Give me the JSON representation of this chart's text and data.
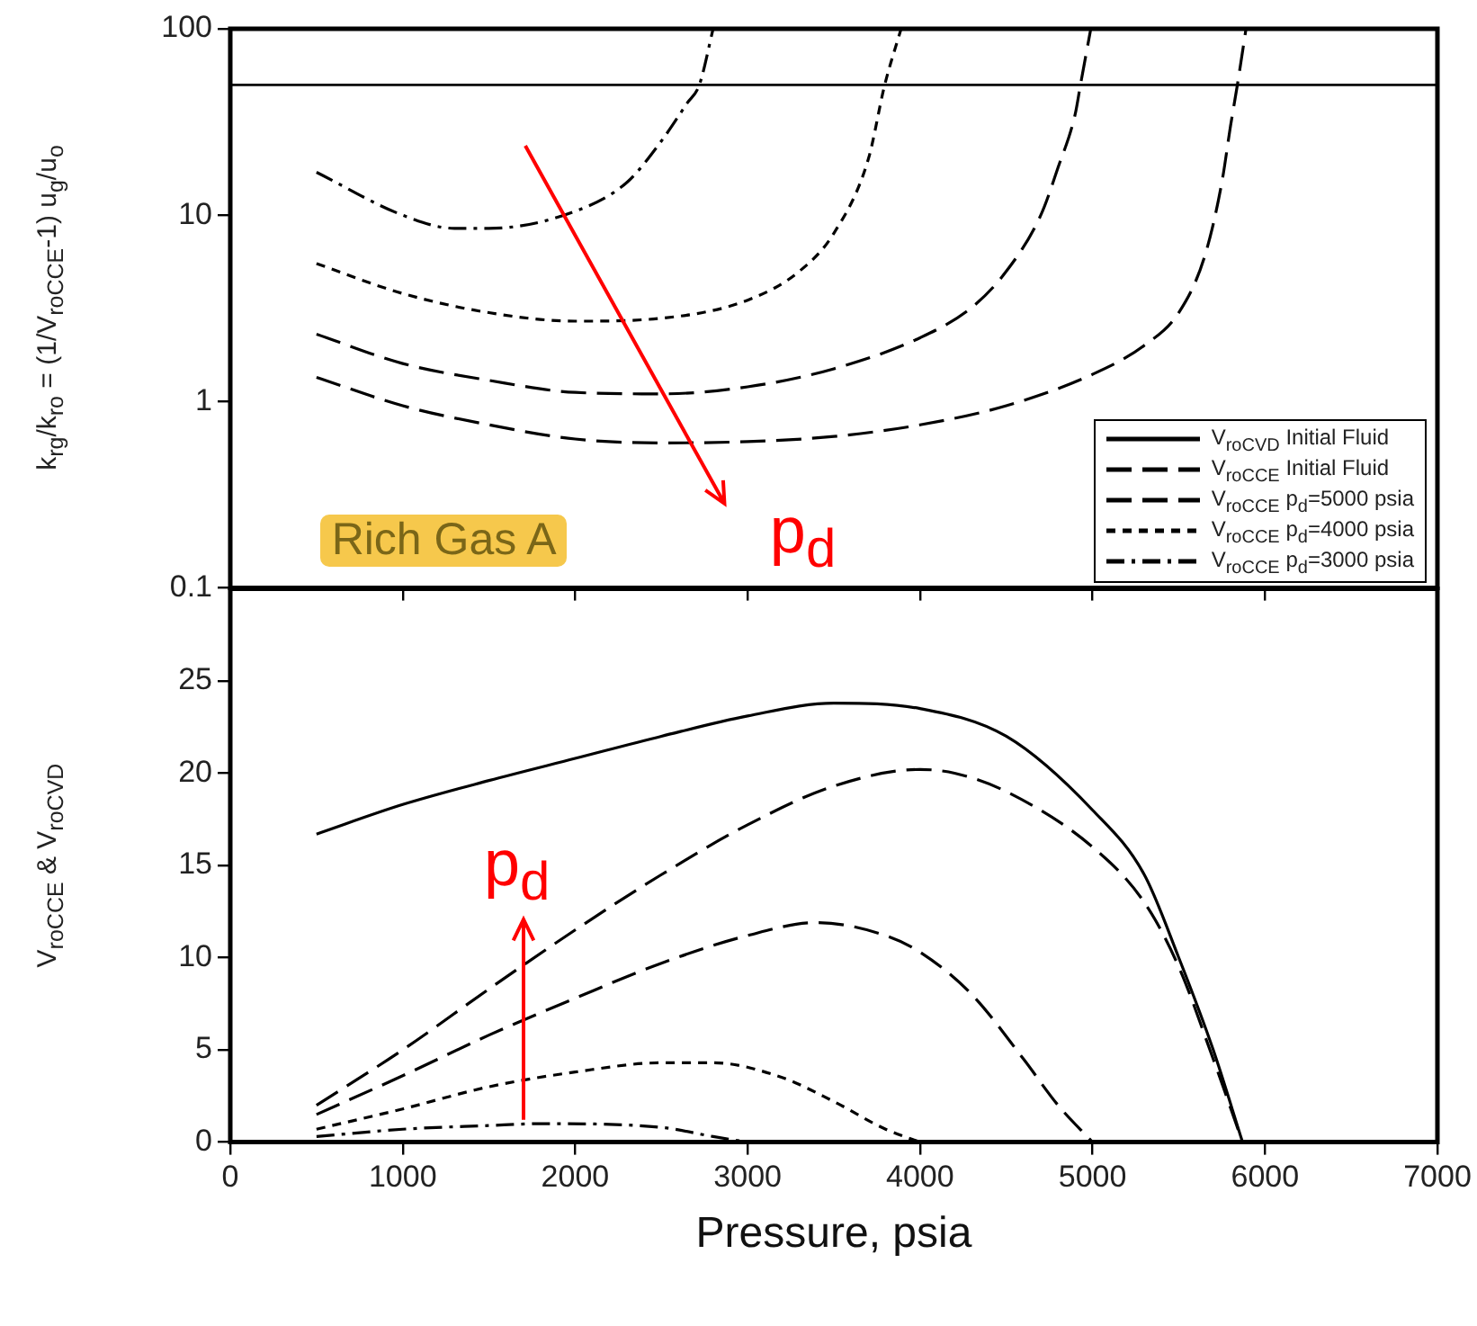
{
  "chart_data": [
    {
      "type": "line",
      "ylabel": "k$_{rg}$/k$_{ro}$ = (1/V$_{roCCE}$-1) u$_{g}$/u$_{o}$",
      "log": "y",
      "xlim": [
        0,
        7000
      ],
      "xticks": [
        0,
        1000,
        2000,
        3000,
        4000,
        5000,
        6000,
        7000
      ],
      "ylim": [
        0.1,
        100
      ],
      "yticks": [
        0.1,
        1,
        10,
        100
      ],
      "tick_labels": "y",
      "grid": false,
      "legend": false,
      "ref_lines": [
        {
          "axis": "y",
          "value": 50,
          "color": "#000000"
        }
      ],
      "annotations": [
        "Rich Gas A",
        "p$_{d}$"
      ],
      "series": [
        {
          "color": "#000000",
          "line_style": "dashed",
          "x": [
            500,
            1000,
            1500,
            2000,
            2500,
            3000,
            3500,
            4000,
            4500,
            5000,
            5300,
            5500,
            5650,
            5750,
            5800,
            5840,
            5890
          ],
          "values": [
            1.35,
            0.95,
            0.75,
            0.63,
            0.6,
            0.61,
            0.65,
            0.75,
            0.95,
            1.4,
            2,
            3,
            6,
            15,
            30,
            50,
            100
          ]
        },
        {
          "color": "#000000",
          "line_style": "dashed",
          "x": [
            500,
            1000,
            1500,
            2000,
            2500,
            3000,
            3500,
            4000,
            4300,
            4500,
            4700,
            4800,
            4900,
            4930,
            4990
          ],
          "values": [
            2.3,
            1.6,
            1.3,
            1.12,
            1.1,
            1.2,
            1.5,
            2.2,
            3.2,
            5,
            10,
            18,
            35,
            50,
            100
          ]
        },
        {
          "color": "#000000",
          "line_style": "dotted",
          "x": [
            500,
            1000,
            1500,
            2000,
            2500,
            3000,
            3300,
            3500,
            3700,
            3795,
            3890
          ],
          "values": [
            5.5,
            3.8,
            3,
            2.7,
            2.8,
            3.5,
            5,
            8,
            20,
            50,
            100
          ]
        },
        {
          "color": "#000000",
          "line_style": "dashdot",
          "x": [
            500,
            1000,
            1300,
            1500,
            2000,
            2300,
            2500,
            2650,
            2720,
            2800
          ],
          "values": [
            17,
            10,
            8.5,
            8.5,
            10.5,
            15,
            25,
            40,
            50,
            100
          ]
        }
      ]
    },
    {
      "type": "line",
      "xlabel": "Pressure, psia",
      "ylabel": "V$_{roCCE}$ & V$_{roCVD}$",
      "xlim": [
        0,
        7000
      ],
      "xticks": [
        0,
        1000,
        2000,
        3000,
        4000,
        5000,
        6000,
        7000
      ],
      "ylim": [
        0,
        30
      ],
      "yticks": [
        0,
        5,
        10,
        15,
        20,
        25
      ],
      "grid": false,
      "legend": "top right",
      "annotations": [
        {
          "text": "p$_{d}$",
          "x": 1700,
          "y": 9.6
        }
      ],
      "series": [
        {
          "name": "V$_{roCVD}$ Initial Fluid",
          "color": "#000000",
          "line_style": "solid",
          "x": [
            500,
            1000,
            1500,
            2000,
            2500,
            3000,
            3500,
            4000,
            4500,
            5000,
            5300,
            5500,
            5700,
            5870
          ],
          "values": [
            16.7,
            18.3,
            19.6,
            20.8,
            22,
            23.1,
            23.8,
            23.5,
            22,
            18,
            14.5,
            10,
            5,
            0
          ]
        },
        {
          "name": "V$_{roCCE}$ Initial Fluid",
          "color": "#000000",
          "line_style": "dashed",
          "x": [
            500,
            1000,
            1500,
            2000,
            2500,
            3000,
            3500,
            4000,
            4200,
            4500,
            5000,
            5300,
            5500,
            5700,
            5870
          ],
          "values": [
            2,
            5,
            8.3,
            11.5,
            14.5,
            17.2,
            19.3,
            20.2,
            20,
            19,
            16,
            13,
            9.5,
            4.5,
            0
          ]
        },
        {
          "name": "V$_{roCCE}$ p$_{d}$=5000 psia",
          "color": "#000000",
          "line_style": "dashed",
          "x": [
            500,
            1000,
            1500,
            2000,
            2500,
            3000,
            3400,
            3800,
            4000,
            4300,
            4600,
            4800,
            5000
          ],
          "values": [
            1.5,
            3.6,
            5.8,
            7.8,
            9.7,
            11.2,
            11.9,
            11.2,
            10.3,
            8,
            4.5,
            2,
            0
          ]
        },
        {
          "name": "V$_{roCCE}$ p$_{d}$=4000 psia",
          "color": "#000000",
          "line_style": "dotted",
          "x": [
            500,
            1000,
            1500,
            2000,
            2500,
            2800,
            3200,
            3500,
            3800,
            4000
          ],
          "values": [
            0.7,
            1.8,
            3,
            3.8,
            4.3,
            4.3,
            3.5,
            2.2,
            0.7,
            0
          ]
        },
        {
          "name": "V$_{roCCE}$ p$_{d}$=3000 psia",
          "color": "#000000",
          "line_style": "dashdot",
          "x": [
            500,
            1000,
            1500,
            1800,
            2500,
            2800,
            3000
          ],
          "values": [
            0.3,
            0.7,
            0.9,
            1,
            0.8,
            0.3,
            0
          ]
        }
      ]
    }
  ]
}
